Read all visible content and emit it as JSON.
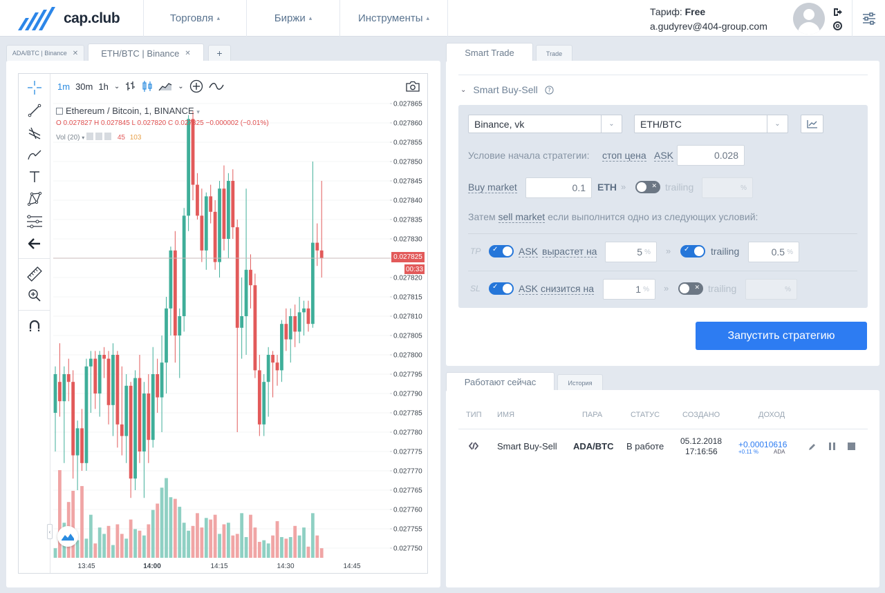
{
  "app": {
    "logo_text": "cap.club"
  },
  "nav": [
    {
      "label": "Торговля"
    },
    {
      "label": "Биржи"
    },
    {
      "label": "Инструменты"
    }
  ],
  "account": {
    "tariff_label": "Тариф:",
    "tariff_value": "Free",
    "email": "a.gudyrev@404-group.com"
  },
  "chart_tabs": [
    {
      "label": "ADA/BTC | Binance"
    },
    {
      "label": "ETH/BTC | Binance"
    }
  ],
  "add_tab": "+",
  "timeframes": [
    "1m",
    "30m",
    "1h"
  ],
  "legend": {
    "title": "Ethereum / Bitcoin, 1, BINANCE",
    "ohlc": "O 0.027827  H 0.027845  L 0.027820  C 0.027825  −0.000002 (−0.01%)",
    "vol_label": "Vol (20)",
    "vol_a": "45",
    "vol_b": "103"
  },
  "price_tag": "0.027825",
  "time_tag": "00:33",
  "chart_data": {
    "type": "candlestick",
    "title": "Ethereum / Bitcoin, 1, BINANCE",
    "ylim": [
      0.02775,
      0.027865
    ],
    "y_ticks": [
      "0.027865",
      "0.027860",
      "0.027855",
      "0.027850",
      "0.027845",
      "0.027840",
      "0.027835",
      "0.027830",
      "0.027825",
      "0.027820",
      "0.027815",
      "0.027810",
      "0.027805",
      "0.027800",
      "0.027795",
      "0.027790",
      "0.027785",
      "0.027780",
      "0.027775",
      "0.027770",
      "0.027765",
      "0.027760",
      "0.027755",
      "0.027750"
    ],
    "x_ticks": [
      "13:45",
      "14:00",
      "14:15",
      "14:30",
      "14:45"
    ],
    "last_price": 0.027825,
    "candles": [
      [
        0.027785,
        0.027797,
        0.027775,
        0.027795
      ],
      [
        0.027793,
        0.027803,
        0.027784,
        0.027788
      ],
      [
        0.027788,
        0.027797,
        0.027772,
        0.027795
      ],
      [
        0.027795,
        0.027799,
        0.027788,
        0.027793
      ],
      [
        0.027793,
        0.027796,
        0.027768,
        0.027774
      ],
      [
        0.027774,
        0.027783,
        0.027765,
        0.027781
      ],
      [
        0.027781,
        0.027786,
        0.02777,
        0.027772
      ],
      [
        0.027772,
        0.027799,
        0.02777,
        0.027797
      ],
      [
        0.027797,
        0.027801,
        0.027785,
        0.027799
      ],
      [
        0.027799,
        0.027801,
        0.027786,
        0.02779
      ],
      [
        0.02779,
        0.027801,
        0.027784,
        0.0278
      ],
      [
        0.0278,
        0.027802,
        0.027794,
        0.027799
      ],
      [
        0.027799,
        0.027801,
        0.027782,
        0.027787
      ],
      [
        0.027787,
        0.027803,
        0.027779,
        0.0278
      ],
      [
        0.0278,
        0.027801,
        0.027776,
        0.027782
      ],
      [
        0.027782,
        0.027797,
        0.027774,
        0.027779
      ],
      [
        0.027779,
        0.027795,
        0.027772,
        0.027792
      ],
      [
        0.027792,
        0.027793,
        0.027763,
        0.027768
      ],
      [
        0.027768,
        0.027796,
        0.027765,
        0.027794
      ],
      [
        0.027794,
        0.0278,
        0.027772,
        0.027775
      ],
      [
        0.027775,
        0.027793,
        0.027763,
        0.02779
      ],
      [
        0.02779,
        0.027795,
        0.027772,
        0.027778
      ],
      [
        0.027778,
        0.027802,
        0.027776,
        0.027795
      ],
      [
        0.027795,
        0.027799,
        0.027785,
        0.027789
      ],
      [
        0.027789,
        0.027805,
        0.02778,
        0.027798
      ],
      [
        0.027798,
        0.027815,
        0.02779,
        0.027812
      ],
      [
        0.027812,
        0.027828,
        0.027805,
        0.027827
      ],
      [
        0.027827,
        0.027832,
        0.027798,
        0.027805
      ],
      [
        0.027805,
        0.027812,
        0.027794,
        0.02781
      ],
      [
        0.02781,
        0.027838,
        0.027806,
        0.027836
      ],
      [
        0.027836,
        0.027862,
        0.027832,
        0.027861
      ],
      [
        0.027861,
        0.027863,
        0.02784,
        0.027844
      ],
      [
        0.027844,
        0.027847,
        0.027835,
        0.027836
      ],
      [
        0.027836,
        0.027843,
        0.027824,
        0.027827
      ],
      [
        0.027827,
        0.027842,
        0.027822,
        0.027841
      ],
      [
        0.027841,
        0.027844,
        0.027834,
        0.027837
      ],
      [
        0.027837,
        0.02784,
        0.027822,
        0.027824
      ],
      [
        0.027824,
        0.027845,
        0.02782,
        0.027843
      ],
      [
        0.027843,
        0.027849,
        0.027827,
        0.02783
      ],
      [
        0.02783,
        0.027847,
        0.027825,
        0.027845
      ],
      [
        0.027845,
        0.027848,
        0.02783,
        0.027833
      ],
      [
        0.027833,
        0.027835,
        0.02778,
        0.027807
      ],
      [
        0.027807,
        0.02782,
        0.027799,
        0.02781
      ],
      [
        0.02781,
        0.027843,
        0.0278,
        0.027822
      ],
      [
        0.027822,
        0.027826,
        0.027812,
        0.027818
      ],
      [
        0.027818,
        0.027821,
        0.027794,
        0.027796
      ],
      [
        0.027796,
        0.0278,
        0.027779,
        0.027782
      ],
      [
        0.027782,
        0.027795,
        0.027779,
        0.027793
      ],
      [
        0.027793,
        0.027802,
        0.027784,
        0.0278
      ],
      [
        0.0278,
        0.027801,
        0.027789,
        0.027798
      ],
      [
        0.027798,
        0.0278,
        0.027792,
        0.027796
      ],
      [
        0.027796,
        0.027809,
        0.027793,
        0.027808
      ],
      [
        0.027808,
        0.027812,
        0.027801,
        0.027804
      ],
      [
        0.027804,
        0.027812,
        0.027798,
        0.02781
      ],
      [
        0.02781,
        0.027813,
        0.027802,
        0.027806
      ],
      [
        0.027806,
        0.027815,
        0.027803,
        0.027811
      ],
      [
        0.027811,
        0.027814,
        0.027805,
        0.027812
      ],
      [
        0.027812,
        0.027814,
        0.027806,
        0.027808
      ],
      [
        0.027808,
        0.02785,
        0.027807,
        0.027829
      ],
      [
        0.027829,
        0.027834,
        0.027823,
        0.027827
      ],
      [
        0.027827,
        0.027845,
        0.02782,
        0.027825
      ]
    ],
    "volumes": [
      6,
      55,
      22,
      35,
      42,
      11,
      45,
      12,
      27,
      9,
      19,
      15,
      20,
      8,
      21,
      15,
      12,
      24,
      18,
      17,
      14,
      21,
      30,
      34,
      44,
      50,
      38,
      37,
      32,
      22,
      17,
      20,
      28,
      19,
      25,
      24,
      27,
      15,
      21,
      22,
      14,
      15,
      28,
      13,
      27,
      19,
      10,
      11,
      9,
      14,
      23,
      13,
      12,
      13,
      20,
      14,
      19,
      7,
      28,
      14,
      6
    ],
    "volume_colors": [
      "g",
      "r",
      "g",
      "r",
      "r",
      "g",
      "r",
      "g",
      "g",
      "r",
      "g",
      "g",
      "r",
      "g",
      "r",
      "r",
      "g",
      "r",
      "g",
      "r",
      "g",
      "r",
      "g",
      "r",
      "g",
      "g",
      "g",
      "r",
      "g",
      "g",
      "g",
      "r",
      "r",
      "r",
      "g",
      "r",
      "r",
      "g",
      "r",
      "g",
      "r",
      "r",
      "g",
      "g",
      "r",
      "r",
      "r",
      "g",
      "g",
      "r",
      "r",
      "g",
      "r",
      "g",
      "r",
      "g",
      "g",
      "r",
      "g",
      "r",
      "r"
    ]
  },
  "smart_tabs": [
    {
      "label": "Smart Trade"
    },
    {
      "label": "Trade"
    }
  ],
  "strategy": {
    "title": "Smart Buy-Sell",
    "exchange": "Binance, vk",
    "pair": "ETH/BTC",
    "start_condition_label": "Условие начала стратегии:",
    "stop_price": "стоп цена",
    "ask": "ASK",
    "start_value": "0.028",
    "buy_market": "Buy market",
    "buy_amount": "0.1",
    "buy_currency": "ETH",
    "trailing": "trailing",
    "pct": "%",
    "then_prefix": "Затем",
    "sell_market": "sell market",
    "then_suffix": "если выполнится одно из следующих условий:",
    "tp": {
      "tag": "TP",
      "ask": "ASK",
      "cond": "вырастет на",
      "value": "5",
      "trailing": "trailing",
      "trailing_value": "0.5"
    },
    "sl": {
      "tag": "SL",
      "ask": "ASK",
      "cond": "снизится на",
      "value": "1",
      "trailing": "trailing",
      "trailing_value": ""
    },
    "run_button": "Запустить стратегию"
  },
  "running_tabs": [
    {
      "label": "Работают сейчас"
    },
    {
      "label": "История"
    }
  ],
  "table": {
    "headers": [
      "ТИП",
      "ИМЯ",
      "ПАРА",
      "СТАТУС",
      "СОЗДАНО",
      "ДОХОД"
    ],
    "rows": [
      {
        "name": "Smart Buy-Sell",
        "pair": "ADA/BTC",
        "status": "В работе",
        "date": "05.12.2018",
        "time": "17:16:56",
        "profit": "+0.00010616",
        "profit_pct": "+0.11 %",
        "profit_cur": "ADA"
      }
    ]
  },
  "colors": {
    "up": "#3fae99",
    "down": "#e25a5a",
    "accent": "#2d7cf2"
  }
}
